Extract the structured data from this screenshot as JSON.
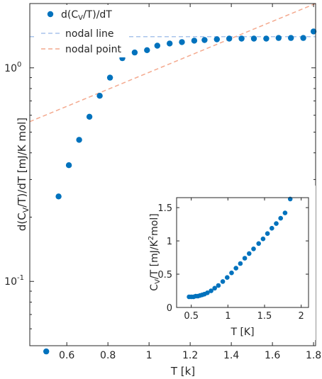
{
  "colors": {
    "marker": "#0072BD",
    "nodal_line": "#A9C4EB",
    "nodal_point": "#F4A98E",
    "axis": "#262626"
  },
  "chart_data": [
    {
      "type": "scatter",
      "title": "",
      "xlabel": "T [k]",
      "ylabel_parts": [
        "d(C",
        "V",
        "/T)/dT [mJ/K mol]"
      ],
      "xlim": [
        0.42,
        1.81
      ],
      "ylim": [
        0.05,
        2.0
      ],
      "yscale": "log",
      "grid": false,
      "legend_position": "top-left",
      "xticks": [
        0.6,
        0.8,
        1,
        1.2,
        1.4,
        1.6,
        1.8
      ],
      "xtick_labels": [
        "0.6",
        "0.8",
        "1",
        "1.2",
        "1.4",
        "1.6",
        "1.8"
      ],
      "yticks": [
        {
          "value": 1,
          "base": "10",
          "exp": "0"
        },
        {
          "value": 0.1,
          "base": "10",
          "exp": "-1"
        }
      ],
      "legend": [
        {
          "kind": "marker",
          "parts": [
            "d(C",
            "V",
            "/T)/dT"
          ]
        },
        {
          "kind": "dashed",
          "label": "nodal line",
          "color_key": "nodal_line"
        },
        {
          "kind": "dashed",
          "label": "nodal point",
          "color_key": "nodal_point"
        }
      ],
      "series": [
        {
          "kind": "scatter",
          "x": [
            0.5,
            0.56,
            0.61,
            0.66,
            0.71,
            0.76,
            0.81,
            0.87,
            0.93,
            0.99,
            1.04,
            1.1,
            1.16,
            1.22,
            1.27,
            1.33,
            1.39,
            1.45,
            1.51,
            1.57,
            1.63,
            1.69,
            1.75,
            1.8
          ],
          "y": [
            0.047,
            0.25,
            0.35,
            0.46,
            0.59,
            0.74,
            0.9,
            1.11,
            1.18,
            1.21,
            1.27,
            1.3,
            1.32,
            1.34,
            1.35,
            1.36,
            1.37,
            1.37,
            1.37,
            1.37,
            1.38,
            1.38,
            1.38,
            1.48
          ]
        }
      ],
      "reference_lines": [
        {
          "name": "nodal line",
          "color_key": "nodal_line",
          "x": [
            0.42,
            1.81
          ],
          "y": [
            1.4,
            1.4
          ]
        },
        {
          "name": "nodal point",
          "color_key": "nodal_point",
          "x": [
            0.42,
            1.81
          ],
          "y": [
            0.56,
            2.0
          ]
        }
      ]
    },
    {
      "type": "scatter",
      "title": "",
      "role": "inset",
      "xlabel": "T [K]",
      "ylabel_parts": [
        "C",
        "V",
        "/T [mJ/K",
        "2",
        "mol]"
      ],
      "xlim": [
        0.3,
        2.1
      ],
      "ylim": [
        0,
        1.65
      ],
      "grid": false,
      "xticks": [
        0.5,
        1,
        1.5,
        2
      ],
      "xtick_labels": [
        "0.5",
        "1",
        "1.5",
        "2"
      ],
      "yticks": [
        0,
        0.5,
        1,
        1.5
      ],
      "ytick_labels": [
        "0",
        "0.5",
        "1",
        "1.5"
      ],
      "series": [
        {
          "kind": "scatter",
          "x": [
            0.47,
            0.5,
            0.53,
            0.56,
            0.59,
            0.62,
            0.65,
            0.68,
            0.72,
            0.77,
            0.82,
            0.87,
            0.93,
            0.99,
            1.05,
            1.11,
            1.17,
            1.23,
            1.29,
            1.35,
            1.42,
            1.48,
            1.54,
            1.6,
            1.66,
            1.72,
            1.78,
            1.85
          ],
          "y": [
            0.16,
            0.16,
            0.16,
            0.17,
            0.17,
            0.18,
            0.19,
            0.2,
            0.22,
            0.25,
            0.29,
            0.33,
            0.39,
            0.45,
            0.52,
            0.59,
            0.66,
            0.74,
            0.81,
            0.88,
            0.96,
            1.03,
            1.11,
            1.19,
            1.26,
            1.34,
            1.42,
            1.63
          ]
        }
      ]
    }
  ]
}
